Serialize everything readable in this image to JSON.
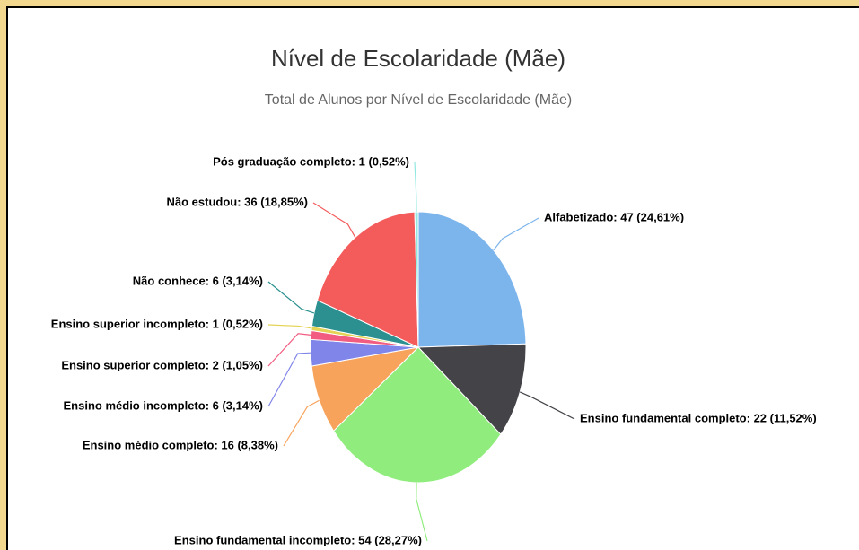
{
  "chart_data": {
    "type": "pie",
    "title": "Nível de Escolaridade (Mãe)",
    "subtitle": "Total de Alunos por Nível de Escolaridade (Mãe)",
    "values": [
      47,
      22,
      54,
      16,
      6,
      2,
      1,
      6,
      36,
      1
    ],
    "value_labels": [
      "Alfabetizado: 47 (24,61%)",
      "Ensino fundamental completo: 22 (11,52%)",
      "Ensino fundamental incompleto: 54 (28,27%)",
      "Ensino médio completo: 16 (8,38%)",
      "Ensino médio incompleto: 6 (3,14%)",
      "Ensino superior completo: 2 (1,05%)",
      "Ensino superior incompleto: 1 (0,52%)",
      "Não conhece: 6 (3,14%)",
      "Não estudou: 36 (18,85%)",
      "Pós graduação completo: 1 (0,52%)"
    ],
    "colors": [
      "#7cb5ec",
      "#434348",
      "#90ed7d",
      "#f7a35c",
      "#8085e9",
      "#f15c80",
      "#e4d354",
      "#2b908f",
      "#f45b5b",
      "#91e8e1"
    ]
  }
}
